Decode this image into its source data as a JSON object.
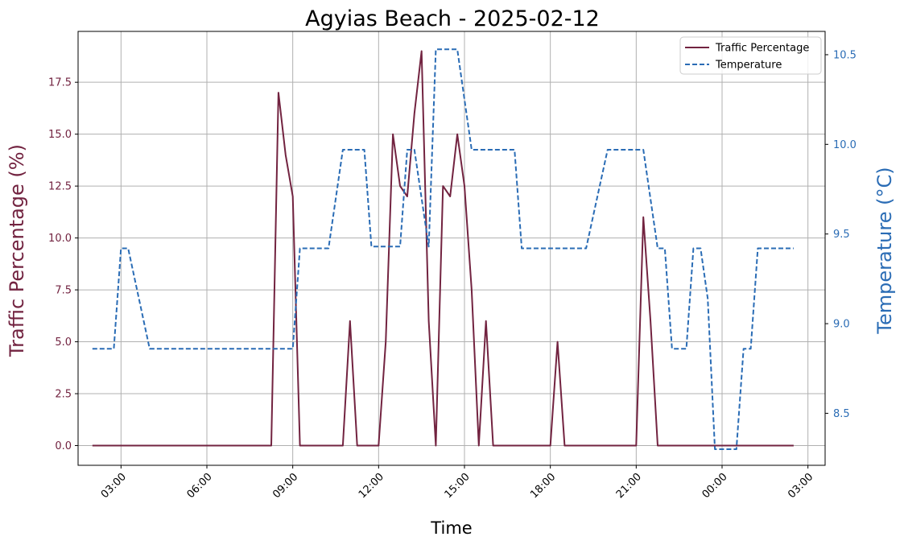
{
  "chart_data": {
    "type": "line",
    "title": "Agyias Beach - 2025-02-12",
    "xlabel": "Time",
    "ylabel_left": "Traffic Percentage (%)",
    "ylabel_right": "Temperature (°C)",
    "x_unit": "hours since 2025-02-12 00:00",
    "xlim": [
      1.5,
      27.6
    ],
    "ylim_left": [
      -0.95,
      19.95
    ],
    "ylim_right": [
      8.21,
      10.63
    ],
    "grid": true,
    "legend_position": "upper right",
    "x_tick_labels": [
      {
        "x": 3,
        "label": "03:00"
      },
      {
        "x": 6,
        "label": "06:00"
      },
      {
        "x": 9,
        "label": "09:00"
      },
      {
        "x": 12,
        "label": "12:00"
      },
      {
        "x": 15,
        "label": "15:00"
      },
      {
        "x": 18,
        "label": "18:00"
      },
      {
        "x": 21,
        "label": "21:00"
      },
      {
        "x": 24,
        "label": "00:00"
      },
      {
        "x": 27,
        "label": "03:00"
      }
    ],
    "y_left_ticks": [
      {
        "v": 0,
        "label": "0.0"
      },
      {
        "v": 2.5,
        "label": "2.5"
      },
      {
        "v": 5,
        "label": "5.0"
      },
      {
        "v": 7.5,
        "label": "7.5"
      },
      {
        "v": 10,
        "label": "10.0"
      },
      {
        "v": 12.5,
        "label": "12.5"
      },
      {
        "v": 15,
        "label": "15.0"
      },
      {
        "v": 17.5,
        "label": "17.5"
      }
    ],
    "y_right_ticks": [
      {
        "v": 8.5,
        "label": "8.5"
      },
      {
        "v": 9.0,
        "label": "9.0"
      },
      {
        "v": 9.5,
        "label": "9.5"
      },
      {
        "v": 10.0,
        "label": "10.0"
      },
      {
        "v": 10.5,
        "label": "10.5"
      }
    ],
    "series": [
      {
        "name": "Traffic Percentage",
        "axis": "left",
        "color": "#722340",
        "style": "solid",
        "x": [
          2.0,
          8.25,
          8.5,
          8.75,
          9.0,
          9.25,
          10.75,
          11.0,
          11.25,
          12.0,
          12.25,
          12.5,
          12.75,
          13.0,
          13.25,
          13.5,
          13.75,
          14.0,
          14.25,
          14.5,
          14.75,
          15.0,
          15.25,
          15.5,
          15.75,
          16.0,
          18.0,
          18.25,
          18.5,
          21.0,
          21.25,
          21.5,
          21.75,
          26.5
        ],
        "y": [
          0,
          0,
          17,
          14,
          12,
          0,
          0,
          6,
          0,
          0,
          5,
          15,
          12.5,
          12,
          16,
          19,
          6,
          0,
          12.5,
          12,
          15,
          12.5,
          7.5,
          0,
          6,
          0,
          0,
          5,
          0,
          0,
          11,
          6,
          0,
          0
        ]
      },
      {
        "name": "Temperature",
        "axis": "right",
        "color": "#2a6cb5",
        "style": "dashed",
        "x": [
          2.0,
          2.75,
          3.0,
          3.25,
          4.0,
          9.0,
          9.25,
          10.25,
          10.75,
          11.5,
          11.75,
          12.75,
          13.0,
          13.25,
          13.75,
          14.0,
          14.75,
          15.25,
          16.75,
          17.0,
          19.25,
          20.0,
          21.25,
          21.75,
          22.0,
          22.25,
          22.75,
          23.0,
          23.25,
          23.5,
          23.75,
          24.5,
          24.75,
          25.0,
          25.25,
          26.5
        ],
        "y": [
          8.86,
          8.86,
          9.42,
          9.42,
          8.86,
          8.86,
          9.42,
          9.42,
          9.97,
          9.97,
          9.43,
          9.43,
          9.97,
          9.97,
          9.43,
          10.53,
          10.53,
          9.97,
          9.97,
          9.42,
          9.42,
          9.97,
          9.97,
          9.42,
          9.42,
          8.86,
          8.86,
          9.42,
          9.42,
          9.14,
          8.3,
          8.3,
          8.86,
          8.86,
          9.42,
          9.42
        ]
      }
    ],
    "colors": {
      "traffic": "#722340",
      "temperature": "#2a6cb5",
      "grid": "#b0b0b0",
      "axis": "#000000"
    }
  }
}
